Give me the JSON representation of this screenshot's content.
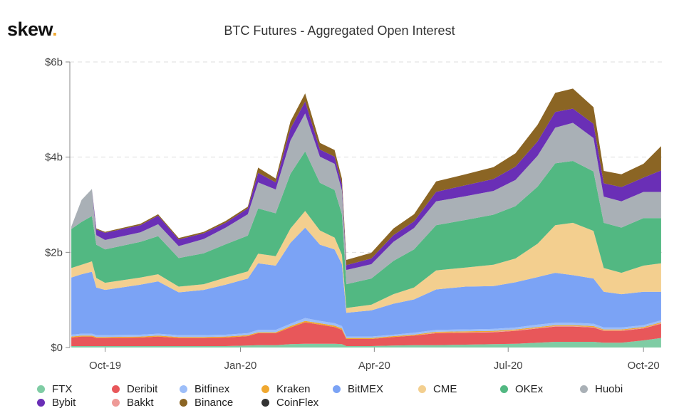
{
  "logo": {
    "text": "skew",
    "dot": "."
  },
  "chart_data": {
    "type": "area",
    "stacked": true,
    "title": "BTC Futures - Aggregated Open Interest",
    "xlabel": "",
    "ylabel": "",
    "ylim": [
      0,
      6
    ],
    "y_ticks": [
      {
        "v": 0,
        "label": "$0"
      },
      {
        "v": 2,
        "label": "$2b"
      },
      {
        "v": 4,
        "label": "$4b"
      },
      {
        "v": 6,
        "label": "$6b"
      }
    ],
    "x_ticks": [
      {
        "d": "2019-10-01",
        "label": "Oct-19"
      },
      {
        "d": "2020-01-01",
        "label": "Jan-20"
      },
      {
        "d": "2020-04-01",
        "label": "Apr-20"
      },
      {
        "d": "2020-07-01",
        "label": "Jul-20"
      },
      {
        "d": "2020-10-01",
        "label": "Oct-20"
      }
    ],
    "xlim": [
      "2019-09-07",
      "2020-10-14"
    ],
    "grid": true,
    "legend_position": "bottom",
    "x": [
      "2019-09-08",
      "2019-09-15",
      "2019-09-22",
      "2019-09-25",
      "2019-10-01",
      "2019-10-25",
      "2019-11-06",
      "2019-11-20",
      "2019-12-07",
      "2019-12-22",
      "2020-01-06",
      "2020-01-13",
      "2020-01-25",
      "2020-02-04",
      "2020-02-14",
      "2020-02-24",
      "2020-03-05",
      "2020-03-10",
      "2020-03-13",
      "2020-03-30",
      "2020-04-14",
      "2020-04-28",
      "2020-05-13",
      "2020-06-02",
      "2020-06-21",
      "2020-07-06",
      "2020-07-21",
      "2020-08-02",
      "2020-08-14",
      "2020-08-28",
      "2020-09-04",
      "2020-09-16",
      "2020-10-01",
      "2020-10-13"
    ],
    "series": [
      {
        "name": "FTX",
        "color": "#7fcca4",
        "values": [
          0.03,
          0.03,
          0.03,
          0.03,
          0.03,
          0.03,
          0.03,
          0.03,
          0.03,
          0.03,
          0.04,
          0.05,
          0.05,
          0.07,
          0.08,
          0.08,
          0.08,
          0.07,
          0.03,
          0.03,
          0.04,
          0.05,
          0.05,
          0.06,
          0.07,
          0.08,
          0.1,
          0.12,
          0.12,
          0.12,
          0.1,
          0.1,
          0.15,
          0.2
        ]
      },
      {
        "name": "Deribit",
        "color": "#e8575a",
        "values": [
          0.18,
          0.2,
          0.2,
          0.17,
          0.17,
          0.18,
          0.2,
          0.17,
          0.17,
          0.18,
          0.2,
          0.25,
          0.25,
          0.35,
          0.45,
          0.4,
          0.35,
          0.3,
          0.15,
          0.15,
          0.18,
          0.2,
          0.25,
          0.25,
          0.25,
          0.27,
          0.3,
          0.32,
          0.32,
          0.3,
          0.25,
          0.25,
          0.25,
          0.3
        ]
      },
      {
        "name": "Bakkt",
        "color": "#ee9a97",
        "values": [
          0,
          0,
          0,
          0,
          0,
          0,
          0,
          0,
          0,
          0,
          0,
          0,
          0,
          0,
          0,
          0,
          0,
          0,
          0,
          0,
          0,
          0,
          0.01,
          0.01,
          0.01,
          0.01,
          0.01,
          0.01,
          0.01,
          0.01,
          0.01,
          0.01,
          0.01,
          0.01
        ]
      },
      {
        "name": "Kraken",
        "color": "#f0a830",
        "values": [
          0.02,
          0.02,
          0.02,
          0.02,
          0.02,
          0.02,
          0.02,
          0.02,
          0.02,
          0.02,
          0.02,
          0.02,
          0.02,
          0.03,
          0.03,
          0.03,
          0.03,
          0.03,
          0.02,
          0.02,
          0.02,
          0.02,
          0.02,
          0.02,
          0.02,
          0.02,
          0.02,
          0.02,
          0.02,
          0.02,
          0.02,
          0.02,
          0.02,
          0.02
        ]
      },
      {
        "name": "Bitfinex",
        "color": "#9dbef9",
        "values": [
          0.04,
          0.04,
          0.04,
          0.04,
          0.04,
          0.04,
          0.04,
          0.04,
          0.04,
          0.04,
          0.04,
          0.05,
          0.05,
          0.05,
          0.06,
          0.05,
          0.05,
          0.05,
          0.03,
          0.03,
          0.03,
          0.04,
          0.04,
          0.04,
          0.04,
          0.04,
          0.05,
          0.05,
          0.05,
          0.05,
          0.04,
          0.04,
          0.04,
          0.04
        ]
      },
      {
        "name": "BitMEX",
        "color": "#7ba3f5",
        "values": [
          1.2,
          1.25,
          1.3,
          1.0,
          0.95,
          1.05,
          1.1,
          0.9,
          0.95,
          1.05,
          1.15,
          1.4,
          1.35,
          1.7,
          1.9,
          1.6,
          1.55,
          1.3,
          0.5,
          0.55,
          0.65,
          0.7,
          0.85,
          0.9,
          0.9,
          0.95,
          1.0,
          1.05,
          1.0,
          0.95,
          0.75,
          0.7,
          0.7,
          0.6
        ]
      },
      {
        "name": "CME",
        "color": "#f3cf8f",
        "values": [
          0.2,
          0.2,
          0.22,
          0.2,
          0.15,
          0.15,
          0.15,
          0.12,
          0.12,
          0.15,
          0.15,
          0.2,
          0.2,
          0.3,
          0.35,
          0.3,
          0.25,
          0.2,
          0.1,
          0.12,
          0.2,
          0.25,
          0.4,
          0.4,
          0.45,
          0.5,
          0.7,
          1.0,
          1.1,
          1.0,
          0.5,
          0.45,
          0.55,
          0.6
        ]
      },
      {
        "name": "OKEx",
        "color": "#52b882",
        "values": [
          0.82,
          0.9,
          0.95,
          0.7,
          0.7,
          0.75,
          0.8,
          0.6,
          0.65,
          0.7,
          0.75,
          0.95,
          0.9,
          1.15,
          1.25,
          1.0,
          1.0,
          0.85,
          0.5,
          0.55,
          0.7,
          0.8,
          0.95,
          1.0,
          1.05,
          1.1,
          1.2,
          1.3,
          1.3,
          1.25,
          0.95,
          0.95,
          1.0,
          0.95
        ]
      },
      {
        "name": "Huobi",
        "color": "#a9b0b6",
        "values": [
          0.05,
          0.46,
          0.57,
          0.2,
          0.2,
          0.2,
          0.25,
          0.25,
          0.3,
          0.35,
          0.45,
          0.55,
          0.5,
          0.7,
          0.8,
          0.55,
          0.55,
          0.5,
          0.3,
          0.3,
          0.4,
          0.45,
          0.5,
          0.5,
          0.5,
          0.55,
          0.65,
          0.75,
          0.8,
          0.7,
          0.55,
          0.55,
          0.55,
          0.55
        ]
      },
      {
        "name": "Bybit",
        "color": "#6a2fb6",
        "values": [
          0,
          0,
          0,
          0.12,
          0.15,
          0.15,
          0.18,
          0.14,
          0.12,
          0.1,
          0.12,
          0.2,
          0.15,
          0.25,
          0.25,
          0.15,
          0.15,
          0.13,
          0.1,
          0.12,
          0.14,
          0.14,
          0.2,
          0.23,
          0.25,
          0.28,
          0.3,
          0.33,
          0.3,
          0.3,
          0.28,
          0.3,
          0.3,
          0.45
        ]
      },
      {
        "name": "Binance",
        "color": "#8b6524",
        "values": [
          0,
          0,
          0,
          0.02,
          0.02,
          0.03,
          0.03,
          0.03,
          0.03,
          0.04,
          0.04,
          0.11,
          0.08,
          0.15,
          0.17,
          0.14,
          0.14,
          0.12,
          0.11,
          0.12,
          0.14,
          0.15,
          0.22,
          0.23,
          0.25,
          0.28,
          0.35,
          0.4,
          0.42,
          0.35,
          0.26,
          0.27,
          0.29,
          0.51
        ]
      },
      {
        "name": "CoinFlex",
        "color": "#333333",
        "values": [
          0,
          0,
          0,
          0,
          0,
          0,
          0,
          0,
          0,
          0,
          0,
          0,
          0,
          0,
          0,
          0,
          0,
          0,
          0,
          0,
          0,
          0,
          0,
          0,
          0,
          0,
          0,
          0,
          0,
          0,
          0,
          0,
          0,
          0
        ]
      }
    ],
    "legend_order": [
      "FTX",
      "Deribit",
      "Bitfinex",
      "Kraken",
      "BitMEX",
      "CME",
      "OKEx",
      "Huobi",
      "Bybit",
      "Bakkt",
      "Binance",
      "CoinFlex"
    ]
  }
}
